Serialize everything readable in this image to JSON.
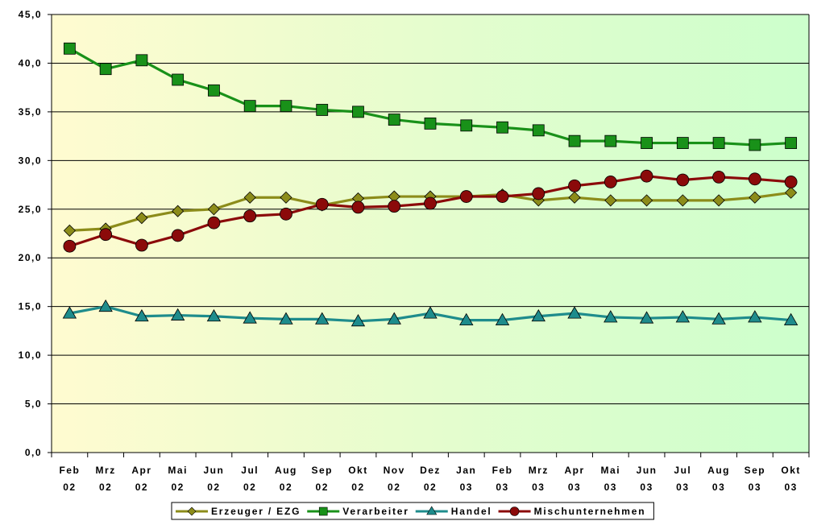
{
  "chart_data": {
    "type": "line",
    "categories": [
      [
        "Feb",
        "02"
      ],
      [
        "Mrz",
        "02"
      ],
      [
        "Apr",
        "02"
      ],
      [
        "Mai",
        "02"
      ],
      [
        "Jun",
        "02"
      ],
      [
        "Jul",
        "02"
      ],
      [
        "Aug",
        "02"
      ],
      [
        "Sep",
        "02"
      ],
      [
        "Okt",
        "02"
      ],
      [
        "Nov",
        "02"
      ],
      [
        "Dez",
        "02"
      ],
      [
        "Jan",
        "03"
      ],
      [
        "Feb",
        "03"
      ],
      [
        "Mrz",
        "03"
      ],
      [
        "Apr",
        "03"
      ],
      [
        "Mai",
        "03"
      ],
      [
        "Jun",
        "03"
      ],
      [
        "Jul",
        "03"
      ],
      [
        "Aug",
        "03"
      ],
      [
        "Sep",
        "03"
      ],
      [
        "Okt",
        "03"
      ]
    ],
    "ylim": [
      0,
      45
    ],
    "ytick_step": 5,
    "ytick_labels": [
      "0,0",
      "5,0",
      "10,0",
      "15,0",
      "20,0",
      "25,0",
      "30,0",
      "35,0",
      "40,0",
      "45,0"
    ],
    "grid": "horizontal",
    "background": [
      "#fffbd0",
      "#ccffcc"
    ],
    "legend_position": "bottom",
    "series": [
      {
        "name": "Erzeuger / EZG",
        "color": "#8c8c1a",
        "marker": "diamond",
        "values": [
          22.8,
          23.0,
          24.1,
          24.8,
          25.0,
          26.2,
          26.2,
          25.4,
          26.1,
          26.3,
          26.3,
          26.3,
          26.5,
          25.9,
          26.2,
          25.9,
          25.9,
          25.9,
          25.9,
          26.2,
          26.7
        ]
      },
      {
        "name": "Verarbeiter",
        "color": "#199119",
        "marker": "square",
        "values": [
          41.5,
          39.4,
          40.3,
          38.3,
          37.2,
          35.6,
          35.6,
          35.2,
          35.0,
          34.2,
          33.8,
          33.6,
          33.4,
          33.1,
          32.0,
          32.0,
          31.8,
          31.8,
          31.8,
          31.6,
          31.8
        ]
      },
      {
        "name": "Handel",
        "color": "#1e8c8c",
        "marker": "triangle",
        "values": [
          14.3,
          15.0,
          14.0,
          14.1,
          14.0,
          13.8,
          13.7,
          13.7,
          13.5,
          13.7,
          14.3,
          13.6,
          13.6,
          14.0,
          14.3,
          13.9,
          13.8,
          13.9,
          13.7,
          13.9,
          13.6
        ]
      },
      {
        "name": "Mischunternehmen",
        "color": "#8b0a0a",
        "marker": "circle",
        "values": [
          21.2,
          22.4,
          21.3,
          22.3,
          23.6,
          24.3,
          24.5,
          25.5,
          25.2,
          25.3,
          25.6,
          26.3,
          26.3,
          26.6,
          27.4,
          27.8,
          28.4,
          28.0,
          28.3,
          28.1,
          27.8
        ]
      }
    ]
  }
}
